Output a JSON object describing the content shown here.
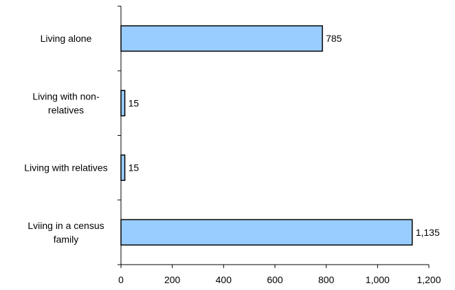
{
  "chart_data": {
    "type": "bar",
    "orientation": "horizontal",
    "categories": [
      "Living alone",
      "Living with non-relatives",
      "Living with relatives",
      "Lviing in a census family"
    ],
    "category_label_lines": [
      [
        "Living alone"
      ],
      [
        "Living with non-",
        "relatives"
      ],
      [
        "Living with relatives"
      ],
      [
        "Lviing in a census",
        "family"
      ]
    ],
    "values": [
      785,
      15,
      15,
      1135
    ],
    "value_labels": [
      "785",
      "15",
      "15",
      "1,135"
    ],
    "xlim": [
      0,
      1200
    ],
    "x_ticks": [
      0,
      200,
      400,
      600,
      800,
      1000,
      1200
    ],
    "x_tick_labels": [
      "0",
      "200",
      "400",
      "600",
      "800",
      "1,000",
      "1,200"
    ],
    "title": "",
    "xlabel": "",
    "ylabel": "",
    "grid": false,
    "legend": "none",
    "colors": {
      "bar_fill": "#99ccff",
      "bar_stroke": "#000000",
      "axis": "#000000"
    }
  }
}
